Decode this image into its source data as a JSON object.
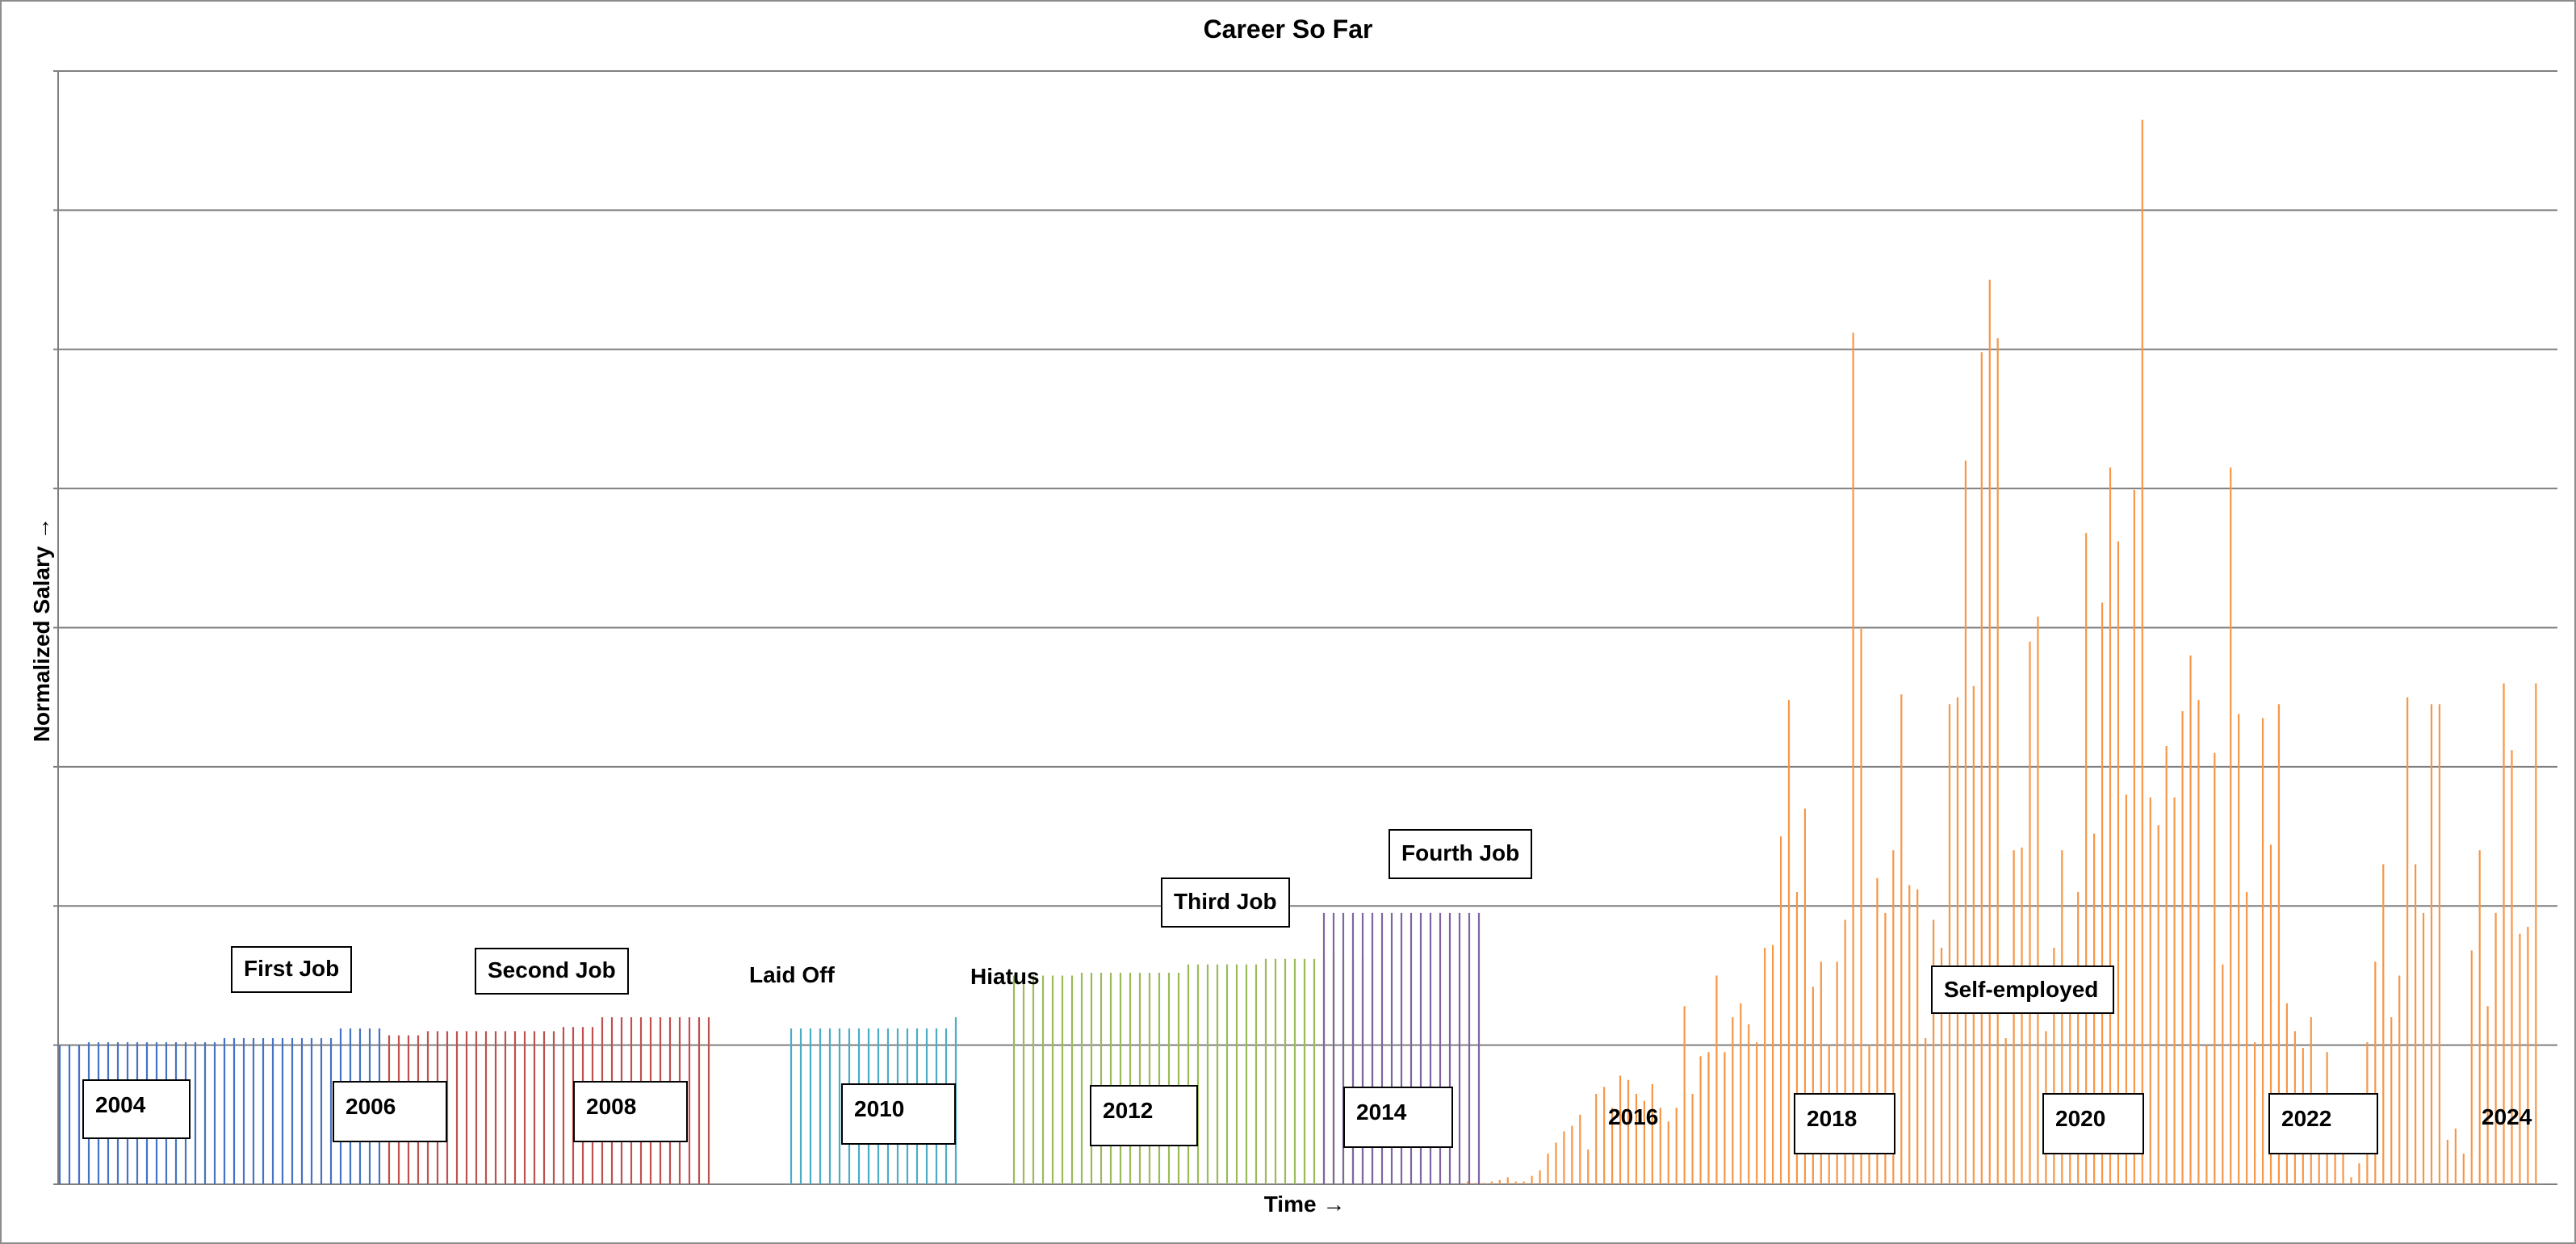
{
  "chart_data": {
    "type": "bar",
    "title": "Career So Far",
    "xlabel": "Time →",
    "ylabel": "Normalized Salary →",
    "grid": true,
    "ylim": [
      0,
      8
    ],
    "series": [
      {
        "color": "#4472c4",
        "values": [
          1.0,
          1.0,
          1.0,
          1.02,
          1.02,
          1.02,
          1.02,
          1.02,
          1.02,
          1.02,
          1.02,
          1.02,
          1.02,
          1.02,
          1.02,
          1.02,
          1.02,
          1.05,
          1.05,
          1.05,
          1.05,
          1.05,
          1.05,
          1.05,
          1.05,
          1.05,
          1.05,
          1.05,
          1.05,
          1.12,
          1.12,
          1.12,
          1.12,
          1.12
        ]
      },
      {
        "color": "#c0504d",
        "values": [
          1.07,
          1.07,
          1.07,
          1.07,
          1.1,
          1.1,
          1.1,
          1.1,
          1.1,
          1.1,
          1.1,
          1.1,
          1.1,
          1.1,
          1.1,
          1.1,
          1.1,
          1.1,
          1.13,
          1.13,
          1.13,
          1.13,
          1.2,
          1.2,
          1.2,
          1.2,
          1.2,
          1.2,
          1.2,
          1.2,
          1.2,
          1.2,
          1.2,
          1.2
        ]
      },
      {
        "color": "#4bacc6",
        "values": [
          1.12,
          1.12,
          1.12,
          1.12,
          1.12,
          1.12,
          1.12,
          1.12,
          1.12,
          1.12,
          1.12,
          1.12,
          1.12,
          1.12,
          1.12,
          1.12,
          1.12,
          1.2
        ]
      },
      {
        "color": "#9bbb59",
        "values": [
          1.5,
          1.5,
          1.5,
          1.5,
          1.5,
          1.5,
          1.5,
          1.52,
          1.52,
          1.52,
          1.52,
          1.52,
          1.52,
          1.52,
          1.52,
          1.52,
          1.52,
          1.52,
          1.58,
          1.58,
          1.58,
          1.58,
          1.58,
          1.58,
          1.58,
          1.58,
          1.62,
          1.62,
          1.62,
          1.62,
          1.62,
          1.62,
          1.62,
          1.62,
          1.62,
          1.62,
          1.62,
          1.62
        ]
      },
      {
        "color": "#8064a2",
        "values": [
          1.95,
          1.95,
          1.95,
          1.95,
          1.95,
          1.95,
          1.95,
          1.95,
          1.95,
          1.95,
          1.95,
          1.95,
          1.95,
          1.95,
          1.95,
          1.95,
          1.95
        ]
      },
      {
        "color": "#f79646",
        "values": [
          0.02,
          0.01,
          0.01,
          0.02,
          0.03,
          0.05,
          0.02,
          0.02,
          0.06,
          0.1,
          0.22,
          0.3,
          0.38,
          0.42,
          0.5,
          0.25,
          0.65,
          0.7,
          0.55,
          0.78,
          0.75,
          0.65,
          0.6,
          0.72,
          0.55,
          0.45,
          0.55,
          1.28,
          0.65,
          0.92,
          0.95,
          1.5,
          0.95,
          1.2,
          1.3,
          1.15,
          1.02,
          1.7,
          1.72,
          2.5,
          3.48,
          2.1,
          2.7,
          1.42,
          1.6,
          1.0,
          1.6,
          1.9,
          6.12,
          4.0,
          1.0,
          2.2,
          1.95,
          2.4,
          3.52,
          2.15,
          2.12,
          1.05,
          1.9,
          1.7,
          3.45,
          3.5,
          5.2,
          3.58,
          5.98,
          6.5,
          6.08,
          1.05,
          2.4,
          2.42,
          3.9,
          4.08,
          1.1,
          1.7,
          2.4,
          1.52,
          2.1,
          4.68,
          2.52,
          4.18,
          5.15,
          4.62,
          2.8,
          4.99,
          7.65,
          2.78,
          2.58,
          3.15,
          2.78,
          3.4,
          3.8,
          3.48,
          1.0,
          3.1,
          1.58,
          5.15,
          3.38,
          2.1,
          1.02,
          3.35,
          2.44,
          3.45,
          1.3,
          1.1,
          0.98,
          1.2,
          0.6,
          0.95,
          0.45,
          0.3,
          0.05,
          0.15,
          1.02,
          1.6,
          2.3,
          1.2,
          1.5,
          3.5,
          2.3,
          1.95,
          3.45,
          3.45,
          0.32,
          0.4,
          0.22,
          1.68,
          2.4,
          1.28,
          1.95,
          3.6,
          3.12,
          1.8,
          1.85,
          3.6
        ]
      }
    ],
    "categories_label_years": [
      "2004",
      "2006",
      "2008",
      "2010",
      "2012",
      "2014",
      "2016",
      "2018",
      "2020",
      "2022",
      "2024"
    ],
    "annotations": [
      "First Job",
      "Second Job",
      "Laid Off",
      "Hiatus",
      "Third Job",
      "Fourth Job",
      "Self-employed"
    ]
  },
  "labels": {
    "y2004": "2004",
    "y2006": "2006",
    "y2008": "2008",
    "y2010": "2010",
    "y2012": "2012",
    "y2014": "2014",
    "y2016": "2016",
    "y2018": "2018",
    "y2020": "2020",
    "y2022": "2022",
    "y2024": "2024",
    "first_job": "First Job",
    "second_job": "Second Job",
    "laid_off": "Laid Off",
    "hiatus": "Hiatus",
    "third_job": "Third Job",
    "fourth_job": "Fourth Job",
    "self_employed": "Self-employed"
  }
}
